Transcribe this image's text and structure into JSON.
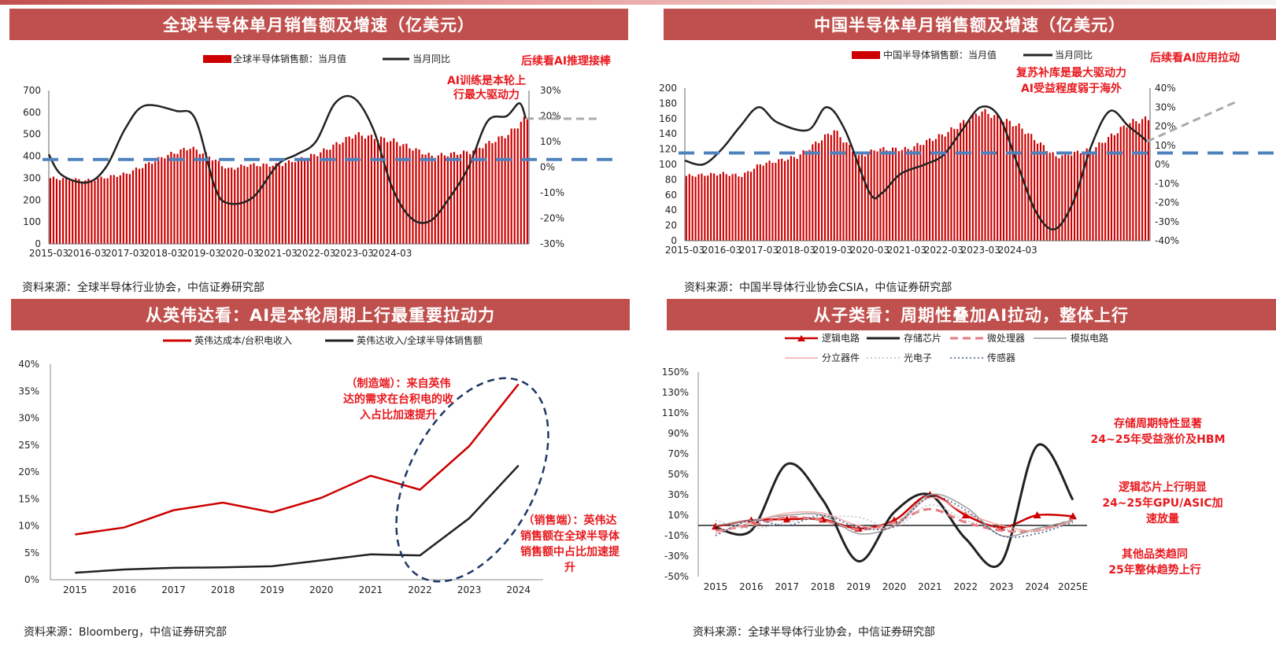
{
  "colors": {
    "accent": "#c0504d",
    "bar": "#cc0000",
    "line": "#222222",
    "dash": "#4f81bd",
    "redText": "#e8191e"
  },
  "panels": [
    {
      "title": "全球半导体单月销售额及增速（亿美元）",
      "source": "资料来源：全球半导体行业协会，中信证券研究部"
    },
    {
      "title": "中国半导体单月销售额及增速（亿美元）",
      "source": "资料来源：中国半导体行业协会CSIA，中信证券研究部"
    },
    {
      "title": "从英伟达看：AI是本轮周期上行最重要拉动力",
      "source": "资料来源：Bloomberg，中信证券研究部"
    },
    {
      "title": "从子类看：周期性叠加AI拉动，整体上行",
      "source": "资料来源：全球半导体行业协会，中信证券研究部"
    }
  ],
  "chart_data": [
    {
      "type": "bar",
      "title": "全球半导体单月销售额及增速（亿美元）",
      "legend": [
        "全球半导体销售额：当月值",
        "当月同比"
      ],
      "x_ticks": [
        "2015-03",
        "2016-03",
        "2017-03",
        "2018-03",
        "2019-03",
        "2020-03",
        "2021-03",
        "2022-03",
        "2023-03",
        "2024-03"
      ],
      "ylim": [
        0,
        700
      ],
      "y_ticks": [
        "0",
        "100",
        "200",
        "300",
        "400",
        "500",
        "600",
        "700"
      ],
      "y2lim": [
        -30,
        30
      ],
      "y2_ticks": [
        "-30%",
        "-20%",
        "-10%",
        "0%",
        "10%",
        "20%",
        "30%"
      ],
      "monthly_sales_anchor_points": [
        [
          0,
          300
        ],
        [
          12,
          290
        ],
        [
          24,
          320
        ],
        [
          36,
          400
        ],
        [
          44,
          440
        ],
        [
          50,
          400
        ],
        [
          56,
          340
        ],
        [
          62,
          360
        ],
        [
          72,
          360
        ],
        [
          84,
          410
        ],
        [
          96,
          500
        ],
        [
          108,
          470
        ],
        [
          120,
          400
        ],
        [
          132,
          420
        ],
        [
          144,
          500
        ],
        [
          150,
          580
        ]
      ],
      "yoy_anchor_points": [
        [
          0,
          5
        ],
        [
          4,
          -3
        ],
        [
          12,
          -6
        ],
        [
          18,
          0
        ],
        [
          24,
          15
        ],
        [
          30,
          24
        ],
        [
          40,
          22
        ],
        [
          46,
          19
        ],
        [
          52,
          -7
        ],
        [
          56,
          -14
        ],
        [
          64,
          -12
        ],
        [
          72,
          1
        ],
        [
          78,
          5
        ],
        [
          84,
          10
        ],
        [
          90,
          25
        ],
        [
          96,
          27
        ],
        [
          102,
          15
        ],
        [
          108,
          -8
        ],
        [
          114,
          -20
        ],
        [
          120,
          -21
        ],
        [
          126,
          -12
        ],
        [
          132,
          0
        ],
        [
          138,
          18
        ],
        [
          144,
          20
        ],
        [
          148,
          25
        ],
        [
          150,
          19
        ]
      ],
      "annotations": [
        "后续看AI推理接棒",
        "AI训练是本轮上行最大驱动力"
      ],
      "reference_line_pct": 3
    },
    {
      "type": "bar",
      "title": "中国半导体单月销售额及增速（亿美元）",
      "legend": [
        "中国半导体销售额：当月值",
        "当月同比"
      ],
      "x_ticks": [
        "2015-03",
        "2016-03",
        "2017-03",
        "2018-03",
        "2019-03",
        "2020-03",
        "2021-03",
        "2022-03",
        "2023-03",
        "2024-03"
      ],
      "ylim": [
        0,
        200
      ],
      "y_ticks": [
        "0",
        "20",
        "40",
        "60",
        "80",
        "100",
        "120",
        "140",
        "160",
        "180",
        "200"
      ],
      "y2lim": [
        -40,
        40
      ],
      "y2_ticks": [
        "-40%",
        "-30%",
        "-20%",
        "-10%",
        "0%",
        "10%",
        "20%",
        "30%",
        "40%"
      ],
      "monthly_sales_anchor_points": [
        [
          0,
          85
        ],
        [
          12,
          88
        ],
        [
          18,
          85
        ],
        [
          24,
          100
        ],
        [
          36,
          110
        ],
        [
          48,
          145
        ],
        [
          56,
          110
        ],
        [
          62,
          120
        ],
        [
          72,
          120
        ],
        [
          84,
          140
        ],
        [
          96,
          170
        ],
        [
          108,
          150
        ],
        [
          120,
          110
        ],
        [
          132,
          120
        ],
        [
          144,
          155
        ],
        [
          150,
          160
        ]
      ],
      "yoy_anchor_points": [
        [
          0,
          2
        ],
        [
          6,
          0
        ],
        [
          12,
          8
        ],
        [
          18,
          20
        ],
        [
          24,
          30
        ],
        [
          30,
          22
        ],
        [
          40,
          18
        ],
        [
          46,
          30
        ],
        [
          52,
          18
        ],
        [
          60,
          -15
        ],
        [
          64,
          -15
        ],
        [
          70,
          -5
        ],
        [
          78,
          0
        ],
        [
          84,
          5
        ],
        [
          90,
          18
        ],
        [
          96,
          30
        ],
        [
          102,
          25
        ],
        [
          108,
          0
        ],
        [
          114,
          -25
        ],
        [
          120,
          -34
        ],
        [
          126,
          -20
        ],
        [
          132,
          10
        ],
        [
          138,
          28
        ],
        [
          144,
          20
        ],
        [
          148,
          15
        ],
        [
          150,
          12
        ]
      ],
      "annotations": [
        "后续看AI应用拉动",
        "复苏补库是最大驱动力",
        "AI受益程度弱于海外"
      ],
      "reference_line_pct": 6
    },
    {
      "type": "line",
      "legend": [
        "英伟达成本/台积电收入",
        "英伟达收入/全球半导体销售额"
      ],
      "categories": [
        "2015",
        "2016",
        "2017",
        "2018",
        "2019",
        "2020",
        "2021",
        "2022",
        "2023",
        "2024"
      ],
      "ylim": [
        0,
        40
      ],
      "y_ticks": [
        "0%",
        "5%",
        "10%",
        "15%",
        "20%",
        "25%",
        "30%",
        "35%",
        "40%"
      ],
      "series": [
        {
          "name": "英伟达成本/台积电收入",
          "values": [
            8.4,
            9.7,
            12.9,
            14.3,
            12.5,
            15.2,
            19.3,
            16.7,
            24.8,
            36.3
          ]
        },
        {
          "name": "英伟达收入/全球半导体销售额",
          "values": [
            1.3,
            1.9,
            2.2,
            2.3,
            2.5,
            3.6,
            4.7,
            4.5,
            11.4,
            21.2
          ]
        }
      ],
      "annotations": [
        "（制造端）：来自英伟达的需求在台积电的收入占比加速提升",
        "（销售端）：英伟达销售额在全球半导体销售额中占比加速提升"
      ]
    },
    {
      "type": "line",
      "legend": [
        "逻辑电路",
        "存储芯片",
        "微处理器",
        "模拟电路",
        "分立器件",
        "光电子",
        "传感器"
      ],
      "categories": [
        "2015",
        "2016",
        "2017",
        "2018",
        "2019",
        "2020",
        "2021",
        "2022",
        "2023",
        "2024",
        "2025E"
      ],
      "ylim": [
        -50,
        150
      ],
      "y_ticks": [
        "-50%",
        "-30%",
        "-10%",
        "10%",
        "30%",
        "50%",
        "70%",
        "90%",
        "110%",
        "130%",
        "150%"
      ],
      "series": [
        {
          "name": "逻辑电路",
          "values": [
            -1,
            5,
            6,
            6,
            -3,
            5,
            30,
            10,
            -2,
            10,
            9
          ]
        },
        {
          "name": "存储芯片",
          "values": [
            -2,
            -5,
            60,
            25,
            -35,
            13,
            30,
            -13,
            -36,
            78,
            25
          ]
        },
        {
          "name": "微处理器",
          "values": [
            -5,
            0,
            8,
            5,
            -4,
            3,
            16,
            3,
            -5,
            -5,
            6
          ]
        },
        {
          "name": "模拟电路",
          "values": [
            0,
            5,
            10,
            10,
            -8,
            0,
            30,
            18,
            -10,
            -3,
            5
          ]
        },
        {
          "name": "分立器件",
          "values": [
            -8,
            3,
            12,
            12,
            0,
            -1,
            27,
            12,
            0,
            -5,
            4
          ]
        },
        {
          "name": "光电子",
          "values": [
            5,
            -3,
            3,
            8,
            8,
            -2,
            20,
            5,
            -3,
            -6,
            4
          ]
        },
        {
          "name": "传感器",
          "values": [
            -10,
            5,
            0,
            10,
            -2,
            -1,
            28,
            15,
            -10,
            -8,
            3
          ]
        }
      ],
      "annotations": [
        "存储周期特性显著",
        "24~25年受益涨价及HBM",
        "逻辑芯片上行明显",
        "24~25年GPU/ASIC加速放量",
        "其他品类趋同",
        "25年整体趋势上行"
      ]
    }
  ]
}
